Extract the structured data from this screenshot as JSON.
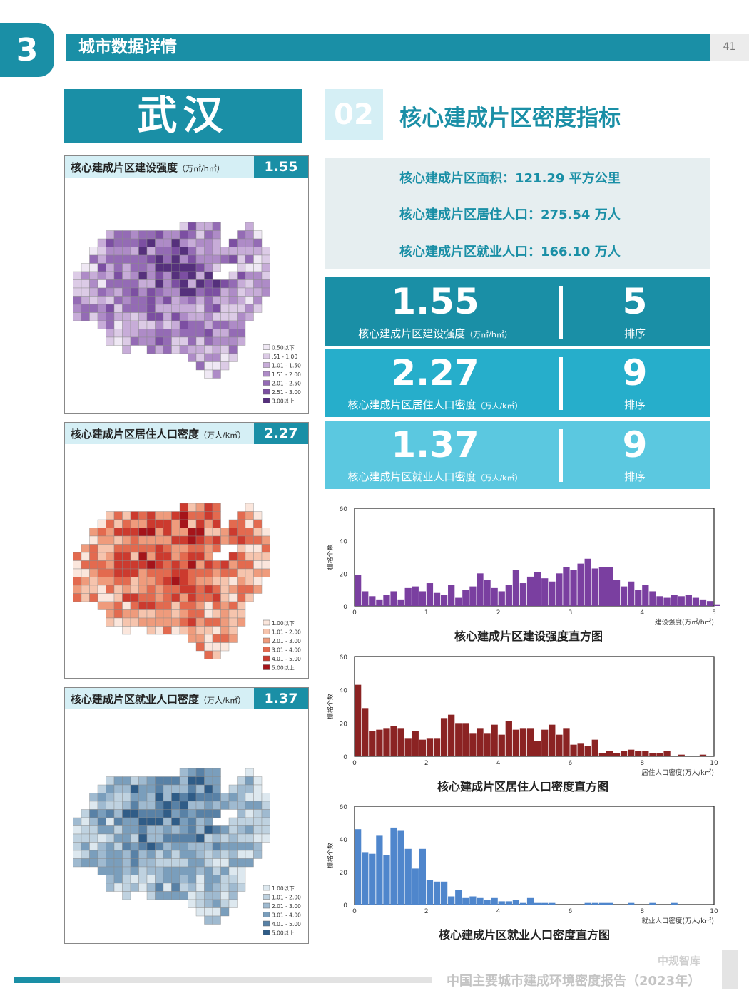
{
  "header": {
    "section_number": "3",
    "section_title": "城市数据详情",
    "page_number": "41"
  },
  "city": "武汉",
  "section2": {
    "number": "02",
    "title": "核心建成片区密度指标"
  },
  "maps": [
    {
      "title": "核心建成片区建设强度",
      "unit": "（万㎡/h㎡）",
      "value": "1.55",
      "legend": [
        "0.50以下",
        ".51 - 1.00",
        "1.01 - 1.50",
        "1.51 - 2.00",
        "2.01 - 2.50",
        "2.51 - 3.00",
        "3.00以上"
      ],
      "colors": [
        "#efe8f4",
        "#dccbe6",
        "#c7acd8",
        "#ae8bc7",
        "#946bb5",
        "#7c4fa2",
        "#55307c"
      ]
    },
    {
      "title": "核心建成片区居住人口密度",
      "unit": "（万人/k㎡）",
      "value": "2.27",
      "legend": [
        "1.00以下",
        "1.01 - 2.00",
        "2.01 - 3.00",
        "3.01 - 4.00",
        "4.01 - 5.00",
        "5.00以上"
      ],
      "colors": [
        "#fbe6dc",
        "#f6c4ad",
        "#ef9b7c",
        "#e36a4f",
        "#cc3a2e",
        "#a5141a"
      ]
    },
    {
      "title": "核心建成片区就业人口密度",
      "unit": "（万人/k㎡）",
      "value": "1.37",
      "legend": [
        "1.00以下",
        "1.01 - 2.00",
        "2.01 - 3.00",
        "3.01 - 4.00",
        "4.01 - 5.00",
        "5.00以上"
      ],
      "colors": [
        "#dde8ef",
        "#bfd2e0",
        "#9fbad0",
        "#7a9ebc",
        "#5881a6",
        "#2f5c87"
      ]
    }
  ],
  "info": {
    "area": "核心建成片区面积：121.29 平方公里",
    "residents": "核心建成片区居住人口：275.54 万人",
    "employment": "核心建成片区就业人口：166.10 万人"
  },
  "stats": [
    {
      "value": "1.55",
      "label": "核心建成片区建设强度",
      "unit": "（万㎡/h㎡）",
      "rank": "5",
      "rank_label": "排序",
      "color": "#1a8fa6"
    },
    {
      "value": "2.27",
      "label": "核心建成片区居住人口密度",
      "unit": "（万人/k㎡）",
      "rank": "9",
      "rank_label": "排序",
      "color": "#26aecb"
    },
    {
      "value": "1.37",
      "label": "核心建成片区就业人口密度",
      "unit": "（万人/k㎡）",
      "rank": "9",
      "rank_label": "排序",
      "color": "#5bc8e0"
    }
  ],
  "chart_data": [
    {
      "type": "bar",
      "title": "核心建成片区建设强度直方图",
      "xlabel": "建设强度(万㎡/h㎡)",
      "ylabel": "栅格个数",
      "xlim": [
        0,
        5
      ],
      "ylim": [
        0,
        60
      ],
      "xticks": [
        "0",
        "1",
        "2",
        "3",
        "4",
        "5"
      ],
      "yticks": [
        "0",
        "20",
        "40",
        "60"
      ],
      "bin_width": 0.1,
      "color": "#7a3fa0",
      "values": [
        19,
        9,
        6,
        4,
        7,
        9,
        4,
        11,
        12,
        9,
        14,
        8,
        7,
        13,
        5,
        10,
        12,
        20,
        16,
        11,
        9,
        13,
        22,
        14,
        18,
        21,
        17,
        15,
        20,
        24,
        22,
        26,
        29,
        23,
        24,
        24,
        16,
        12,
        15,
        10,
        13,
        9,
        6,
        5,
        7,
        6,
        7,
        5,
        4,
        3,
        1,
        0,
        1,
        0,
        0,
        0,
        0,
        0,
        0,
        0,
        0,
        0,
        0,
        0,
        1,
        0,
        0,
        0,
        0,
        0,
        0,
        0,
        0,
        0,
        0,
        0,
        0,
        0,
        0,
        0,
        0,
        1,
        0,
        0,
        0,
        0,
        0,
        0,
        0,
        0,
        0,
        0,
        0,
        0,
        0,
        0,
        0,
        0,
        0,
        0
      ]
    },
    {
      "type": "bar",
      "title": "核心建成片区居住人口密度直方图",
      "xlabel": "居住人口密度(万人/k㎡)",
      "ylabel": "栅格个数",
      "xlim": [
        0,
        10
      ],
      "ylim": [
        0,
        60
      ],
      "xticks": [
        "0",
        "2",
        "4",
        "6",
        "8",
        "10"
      ],
      "yticks": [
        "0",
        "20",
        "40",
        "60"
      ],
      "bin_width": 0.2,
      "color": "#8b2323",
      "values": [
        43,
        29,
        15,
        16,
        17,
        18,
        17,
        11,
        15,
        10,
        11,
        11,
        23,
        25,
        20,
        20,
        14,
        17,
        14,
        19,
        13,
        21,
        16,
        17,
        17,
        9,
        16,
        19,
        13,
        17,
        7,
        8,
        6,
        10,
        2,
        3,
        2,
        3,
        4,
        3,
        3,
        2,
        2,
        3,
        0,
        1,
        0,
        0,
        1,
        0,
        0,
        0,
        0,
        0,
        0,
        0,
        0,
        0,
        0,
        0
      ]
    },
    {
      "type": "bar",
      "title": "核心建成片区就业人口密度直方图",
      "xlabel": "就业人口密度(万人/k㎡)",
      "ylabel": "栅格个数",
      "xlim": [
        0,
        10
      ],
      "ylim": [
        0,
        60
      ],
      "xticks": [
        "0",
        "2",
        "4",
        "6",
        "8",
        "10"
      ],
      "yticks": [
        "0",
        "20",
        "40",
        "60"
      ],
      "bin_width": 0.2,
      "color": "#4f86cc",
      "values": [
        46,
        32,
        31,
        42,
        30,
        47,
        45,
        34,
        22,
        34,
        15,
        14,
        14,
        5,
        9,
        4,
        5,
        4,
        3,
        4,
        2,
        2,
        3,
        1,
        4,
        1,
        1,
        1,
        0,
        0,
        0,
        0,
        1,
        1,
        1,
        1,
        0,
        0,
        1,
        0,
        0,
        1,
        0,
        0,
        1,
        0,
        0,
        0,
        0,
        0,
        0,
        0,
        0,
        0,
        0,
        0,
        0,
        0,
        0,
        0
      ]
    }
  ],
  "footer": {
    "brand": "中规智库",
    "title": "中国主要城市建成环境密度报告（2023年）"
  }
}
